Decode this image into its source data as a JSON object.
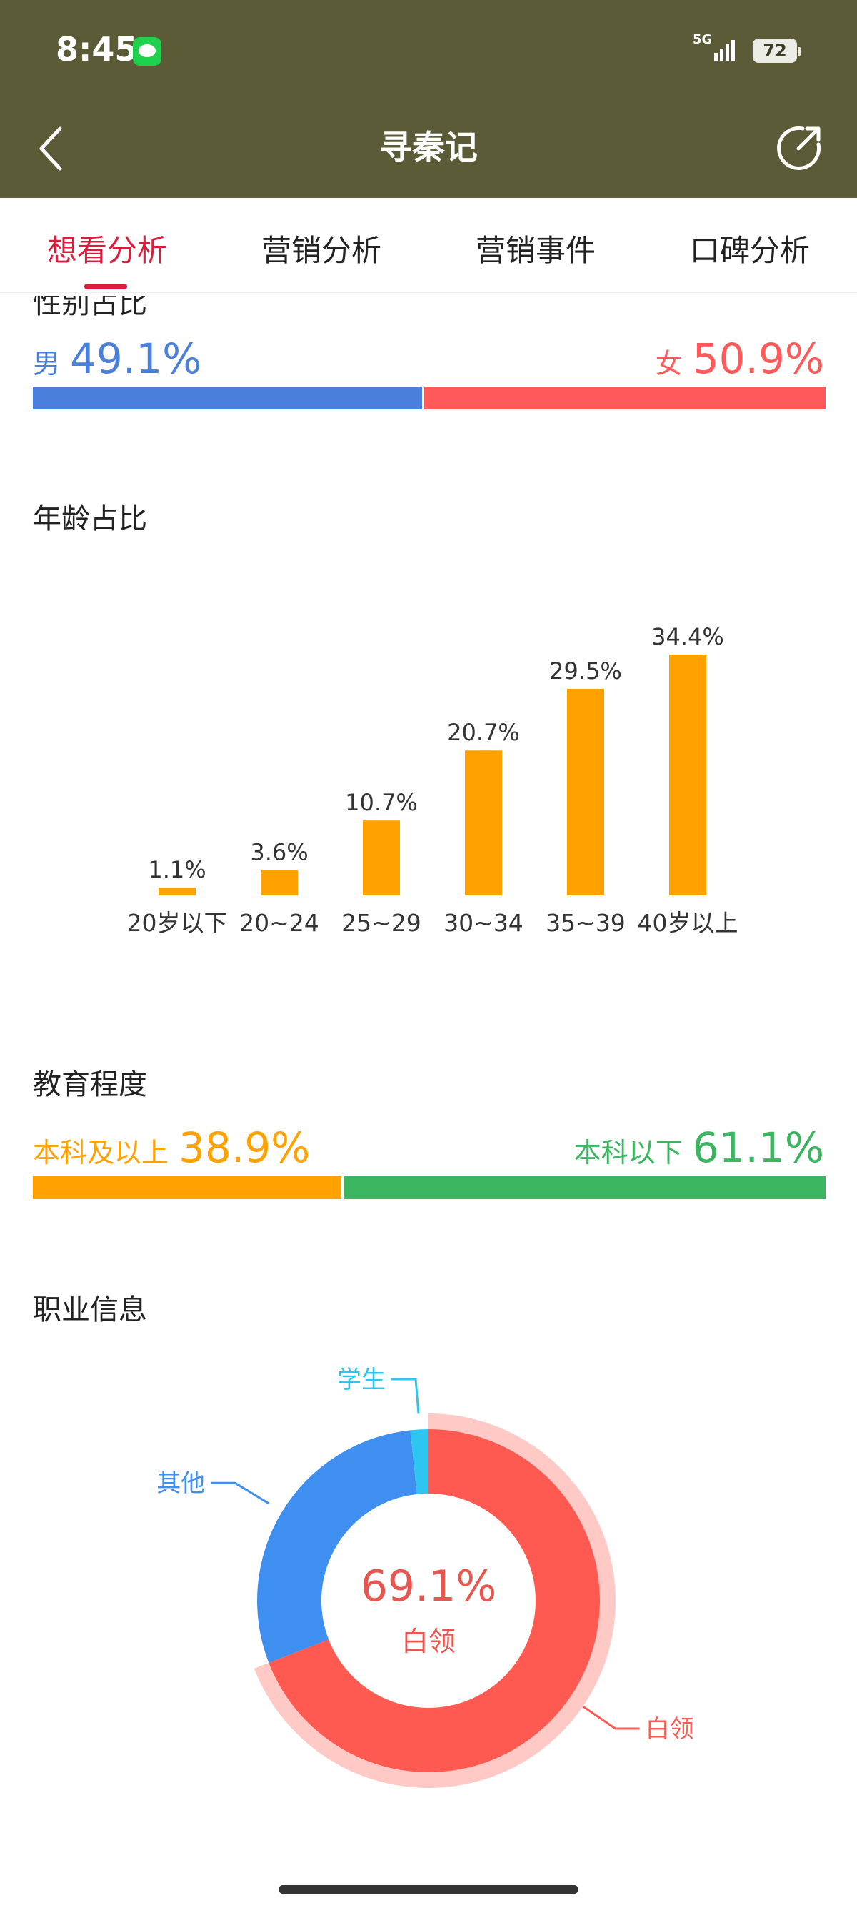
{
  "status_bar": {
    "time": "8:45",
    "network": "5G",
    "battery": "72"
  },
  "nav": {
    "title": "寻秦记"
  },
  "tabs": [
    {
      "label": "想看分析",
      "active": true
    },
    {
      "label": "营销分析",
      "active": false
    },
    {
      "label": "营销事件",
      "active": false
    },
    {
      "label": "口碑分析",
      "active": false
    }
  ],
  "gender": {
    "title": "性别占比",
    "male": {
      "label": "男",
      "value": "49.1%",
      "fraction": 0.491,
      "color": "#4a7fdc"
    },
    "female": {
      "label": "女",
      "value": "50.9%",
      "fraction": 0.509,
      "color": "#ff5a5a"
    }
  },
  "age": {
    "title": "年龄占比"
  },
  "education": {
    "title": "教育程度",
    "above": {
      "label": "本科及以上",
      "value": "38.9%",
      "fraction": 0.389,
      "color": "#ffa100"
    },
    "below": {
      "label": "本科以下",
      "value": "61.1%",
      "fraction": 0.611,
      "color": "#3cb561"
    }
  },
  "occupation": {
    "title": "职业信息",
    "center_value": "69.1%",
    "center_label": "白领"
  },
  "chart_data": [
    {
      "type": "bar",
      "categories": [
        "20岁以下",
        "20~24",
        "25~29",
        "30~34",
        "35~39",
        "40岁以上"
      ],
      "values": [
        1.1,
        3.6,
        10.7,
        20.7,
        29.5,
        34.4
      ],
      "labels": [
        "1.1%",
        "3.6%",
        "10.7%",
        "20.7%",
        "29.5%",
        "34.4%"
      ],
      "ylim": [
        0,
        34.4
      ],
      "color": "#ffa100"
    },
    {
      "type": "pie",
      "categories": [
        "白领",
        "其他",
        "学生"
      ],
      "values": [
        69.1,
        29.2,
        1.7
      ],
      "colors": [
        "#ff5a52",
        "#3f8ff0",
        "#2ec6f0"
      ]
    }
  ]
}
